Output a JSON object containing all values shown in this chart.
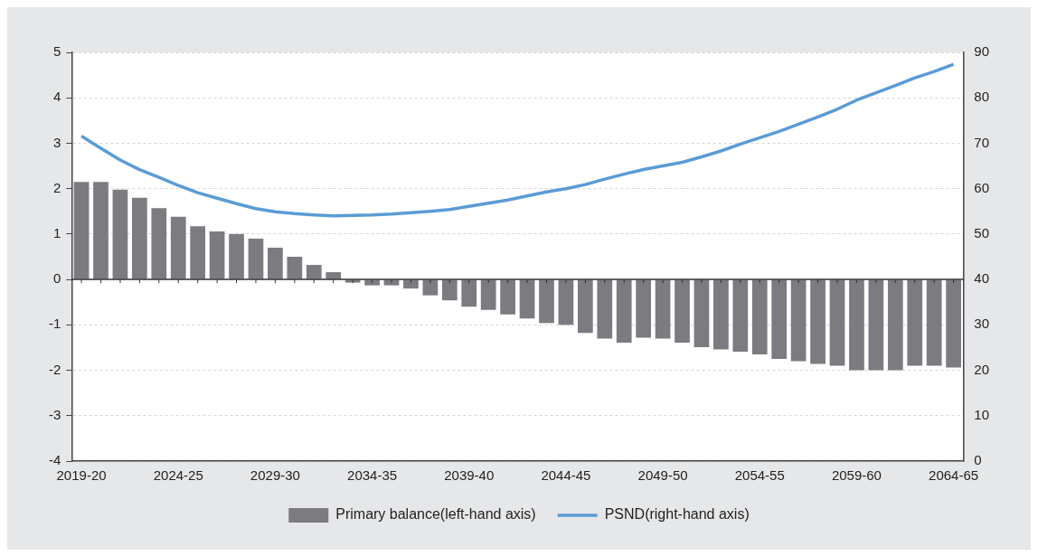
{
  "chart_data": {
    "type": "bar",
    "categories": [
      "2019-20",
      null,
      null,
      null,
      null,
      "2024-25",
      null,
      null,
      null,
      null,
      "2029-30",
      null,
      null,
      null,
      null,
      "2034-35",
      null,
      null,
      null,
      null,
      "2039-40",
      null,
      null,
      null,
      null,
      "2044-45",
      null,
      null,
      null,
      null,
      "2049-50",
      null,
      null,
      null,
      null,
      "2054-55",
      null,
      null,
      null,
      null,
      "2059-60",
      null,
      null,
      null,
      null,
      "2064-65"
    ],
    "series": [
      {
        "name": "Primary balance(left-hand axis)",
        "color": "#7b7b80",
        "values": [
          2.15,
          2.15,
          1.98,
          1.8,
          1.57,
          1.38,
          1.17,
          1.06,
          1.0,
          0.9,
          0.7,
          0.5,
          0.32,
          0.16,
          -0.07,
          -0.13,
          -0.13,
          -0.2,
          -0.35,
          -0.46,
          -0.6,
          -0.67,
          -0.77,
          -0.86,
          -0.96,
          -1.0,
          -1.18,
          -1.3,
          -1.39,
          -1.28,
          -1.3,
          -1.39,
          -1.49,
          -1.54,
          -1.59,
          -1.65,
          -1.75,
          -1.8,
          -1.86,
          -1.9,
          -2.0,
          -2.0,
          -2.0,
          -1.9,
          -1.9,
          -1.94
        ]
      },
      {
        "name": "PSND(right-hand axis)",
        "type": "line",
        "axis": "y2",
        "color": "#5b9bd5",
        "values": [
          71.6,
          68.9,
          66.3,
          64.2,
          62.5,
          60.7,
          59.1,
          57.9,
          56.7,
          55.6,
          54.9,
          54.5,
          54.2,
          54.0,
          54.1,
          54.2,
          54.4,
          54.7,
          55.0,
          55.4,
          56.1,
          56.8,
          57.5,
          58.4,
          59.3,
          60.0,
          60.9,
          62.1,
          63.2,
          64.2,
          65.0,
          65.8,
          67.0,
          68.3,
          69.8,
          71.2,
          72.6,
          74.2,
          75.8,
          77.5,
          79.5,
          81.1,
          82.7,
          84.4,
          85.8,
          87.4
        ]
      }
    ],
    "ylim": [
      -4,
      5
    ],
    "yticks": [
      -4,
      -3,
      -2,
      -1,
      0,
      1,
      2,
      3,
      4,
      5
    ],
    "y2lim": [
      0,
      90
    ],
    "y2ticks": [
      0,
      10,
      20,
      30,
      40,
      50,
      60,
      70,
      80,
      90
    ],
    "grid": "y",
    "legend": "bottom",
    "marker": "none",
    "line_style": "solid"
  }
}
